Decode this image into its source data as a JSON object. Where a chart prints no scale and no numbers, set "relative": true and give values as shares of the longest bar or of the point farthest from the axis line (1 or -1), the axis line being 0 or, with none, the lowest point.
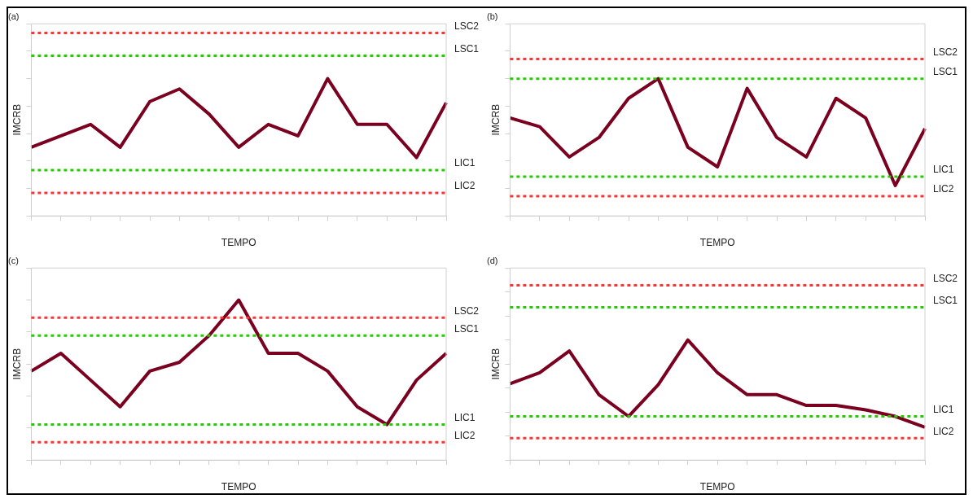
{
  "chart_data": [
    {
      "type": "line",
      "title": "(a)",
      "xlabel": "TEMPO",
      "ylabel": "IMCRB",
      "relative": true,
      "categories": [
        null,
        null,
        null,
        null,
        null,
        null,
        null,
        null,
        null,
        null,
        null,
        null,
        null,
        null,
        null
      ],
      "series": [
        {
          "color": "#7b0020",
          "values": [
            0.5,
            0.583,
            0.667,
            0.5,
            0.833,
            0.925,
            0.742,
            0.5,
            0.667,
            0.583,
            1,
            0.667,
            0.667,
            0.425,
            0.825
          ]
        }
      ],
      "ref_lines": [
        {
          "axis": "y",
          "value": 1.333,
          "label": "LSC2",
          "color": "#ff3333",
          "line_style": "dotted"
        },
        {
          "axis": "y",
          "value": 1.167,
          "label": "LSC1",
          "color": "#22cc00",
          "line_style": "dotted"
        },
        {
          "axis": "y",
          "value": 0.333,
          "label": "LIC1",
          "color": "#22cc00",
          "line_style": "dotted"
        },
        {
          "axis": "y",
          "value": 0.167,
          "label": "LIC2",
          "color": "#ff3333",
          "line_style": "dotted"
        }
      ],
      "grid": false,
      "legend": false,
      "marker": "none",
      "line_style": "solid"
    },
    {
      "type": "line",
      "title": "(b)",
      "xlabel": "TEMPO",
      "ylabel": "IMCRB",
      "relative": true,
      "categories": [
        null,
        null,
        null,
        null,
        null,
        null,
        null,
        null,
        null,
        null,
        null,
        null,
        null,
        null,
        null
      ],
      "series": [
        {
          "color": "#7b0020",
          "values": [
            0.714,
            0.65,
            0.429,
            0.571,
            0.857,
            1,
            0.5,
            0.357,
            0.929,
            0.571,
            0.429,
            0.857,
            0.714,
            0.221,
            0.636
          ]
        }
      ],
      "ref_lines": [
        {
          "axis": "y",
          "value": 1.143,
          "label": "LSC2",
          "color": "#ff3333",
          "line_style": "dotted"
        },
        {
          "axis": "y",
          "value": 1,
          "label": "LSC1",
          "color": "#22cc00",
          "line_style": "dotted"
        },
        {
          "axis": "y",
          "value": 0.286,
          "label": "LIC1",
          "color": "#22cc00",
          "line_style": "dotted"
        },
        {
          "axis": "y",
          "value": 0.143,
          "label": "LIC2",
          "color": "#ff3333",
          "line_style": "dotted"
        }
      ],
      "grid": false,
      "legend": false,
      "marker": "none",
      "line_style": "solid"
    },
    {
      "type": "line",
      "title": "(c)",
      "xlabel": "TEMPO",
      "ylabel": "IMCRB",
      "relative": true,
      "categories": [
        null,
        null,
        null,
        null,
        null,
        null,
        null,
        null,
        null,
        null,
        null,
        null,
        null,
        null,
        null
      ],
      "series": [
        {
          "color": "#7b0020",
          "values": [
            0.556,
            0.667,
            0.5,
            0.333,
            0.556,
            0.611,
            0.778,
            1,
            0.667,
            0.667,
            0.556,
            0.333,
            0.222,
            0.5,
            0.667
          ]
        }
      ],
      "ref_lines": [
        {
          "axis": "y",
          "value": 0.889,
          "label": "LSC2",
          "color": "#ff3333",
          "line_style": "dotted"
        },
        {
          "axis": "y",
          "value": 0.778,
          "label": "LSC1",
          "color": "#22cc00",
          "line_style": "dotted"
        },
        {
          "axis": "y",
          "value": 0.222,
          "label": "LIC1",
          "color": "#22cc00",
          "line_style": "dotted"
        },
        {
          "axis": "y",
          "value": 0.111,
          "label": "LIC2",
          "color": "#ff3333",
          "line_style": "dotted"
        }
      ],
      "grid": false,
      "legend": false,
      "marker": "none",
      "line_style": "solid"
    },
    {
      "type": "line",
      "title": "(d)",
      "xlabel": "TEMPO",
      "ylabel": "IMCRB",
      "relative": true,
      "categories": [
        null,
        null,
        null,
        null,
        null,
        null,
        null,
        null,
        null,
        null,
        null,
        null,
        null,
        null,
        null
      ],
      "series": [
        {
          "color": "#7b0020",
          "values": [
            0.636,
            0.727,
            0.909,
            0.545,
            0.364,
            0.627,
            1,
            0.727,
            0.545,
            0.545,
            0.455,
            0.455,
            0.418,
            0.364,
            0.273
          ]
        }
      ],
      "ref_lines": [
        {
          "axis": "y",
          "value": 1.455,
          "label": "LSC2",
          "color": "#ff3333",
          "line_style": "dotted"
        },
        {
          "axis": "y",
          "value": 1.273,
          "label": "LSC1",
          "color": "#22cc00",
          "line_style": "dotted"
        },
        {
          "axis": "y",
          "value": 0.364,
          "label": "LIC1",
          "color": "#22cc00",
          "line_style": "dotted"
        },
        {
          "axis": "y",
          "value": 0.182,
          "label": "LIC2",
          "color": "#ff3333",
          "line_style": "dotted"
        }
      ],
      "grid": false,
      "legend": false,
      "marker": "none",
      "line_style": "solid"
    }
  ]
}
